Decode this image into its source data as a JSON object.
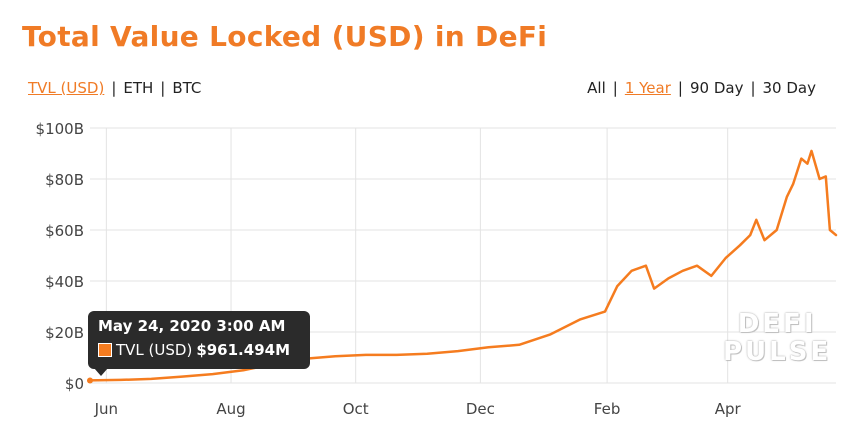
{
  "title": "Total Value Locked (USD) in DeFi",
  "currency_toggles": [
    {
      "label": "TVL (USD)",
      "active": true
    },
    {
      "label": "ETH",
      "active": false
    },
    {
      "label": "BTC",
      "active": false
    }
  ],
  "range_toggles": [
    {
      "label": "All",
      "active": false
    },
    {
      "label": "1 Year",
      "active": true
    },
    {
      "label": "90 Day",
      "active": false
    },
    {
      "label": "30 Day",
      "active": false
    }
  ],
  "watermark": {
    "line1": "DEFI",
    "line2": "PULSE"
  },
  "tooltip": {
    "date": "May 24, 2020 3:00 AM",
    "series": "TVL (USD)",
    "value": "$961.494M"
  },
  "colors": {
    "accent": "#f07b26",
    "line": "#f57c1f",
    "grid": "#e3e3e3",
    "tooltip_bg": "#2b2b2b"
  },
  "chart_data": {
    "type": "line",
    "ylim": [
      0,
      100
    ],
    "y_ticks": [
      0,
      20,
      40,
      60,
      80,
      100
    ],
    "y_tick_labels": [
      "$0",
      "$20B",
      "$40B",
      "$60B",
      "$80B",
      "$100B"
    ],
    "x_ticks": [
      "2020-06-01",
      "2020-08-01",
      "2020-10-01",
      "2020-12-01",
      "2021-02-01",
      "2021-04-01"
    ],
    "x_tick_labels": [
      "Jun",
      "Aug",
      "Oct",
      "Dec",
      "Feb",
      "Apr"
    ],
    "xlim": [
      "2020-05-24",
      "2021-05-24"
    ],
    "grid": true,
    "series": [
      {
        "name": "TVL (USD)",
        "x": [
          "2020-05-24",
          "2020-06-08",
          "2020-06-23",
          "2020-07-08",
          "2020-07-23",
          "2020-08-07",
          "2020-08-22",
          "2020-09-06",
          "2020-09-21",
          "2020-10-06",
          "2020-10-21",
          "2020-11-05",
          "2020-11-20",
          "2020-12-05",
          "2020-12-20",
          "2021-01-04",
          "2021-01-19",
          "2021-01-31",
          "2021-02-06",
          "2021-02-13",
          "2021-02-20",
          "2021-02-24",
          "2021-03-03",
          "2021-03-10",
          "2021-03-17",
          "2021-03-24",
          "2021-03-31",
          "2021-04-07",
          "2021-04-12",
          "2021-04-15",
          "2021-04-19",
          "2021-04-25",
          "2021-04-30",
          "2021-05-03",
          "2021-05-07",
          "2021-05-10",
          "2021-05-12",
          "2021-05-16",
          "2021-05-19",
          "2021-05-21",
          "2021-05-24"
        ],
        "values": [
          1.0,
          1.2,
          1.6,
          2.5,
          3.5,
          5.0,
          7.5,
          9.5,
          10.5,
          11.0,
          11.0,
          11.5,
          12.5,
          14.0,
          15.0,
          19.0,
          25.0,
          28.0,
          38.0,
          44.0,
          46.0,
          37.0,
          41.0,
          44.0,
          46.0,
          42.0,
          49.0,
          54.0,
          58.0,
          64.0,
          56.0,
          60.0,
          73.0,
          78.0,
          88.0,
          86.0,
          91.0,
          80.0,
          81.0,
          60.0,
          58.0
        ]
      }
    ]
  }
}
